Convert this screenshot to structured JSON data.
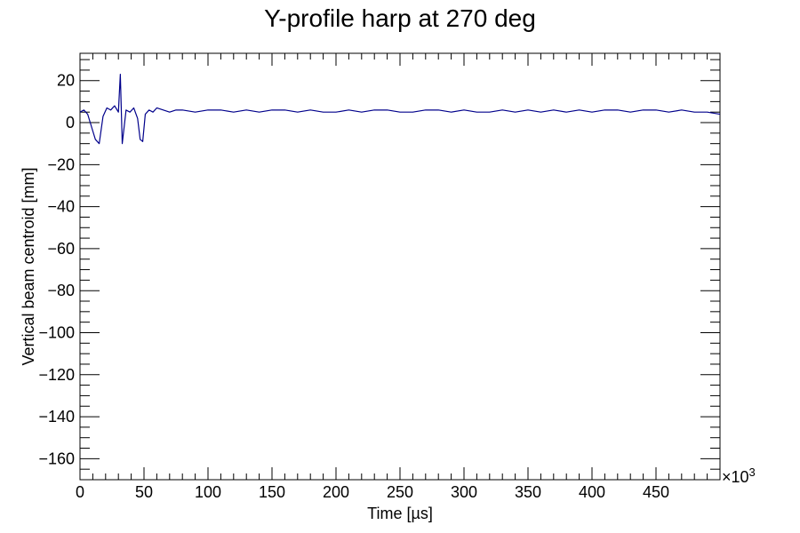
{
  "chart_data": {
    "type": "line",
    "title": "Y-profile harp at 270 deg",
    "xlabel": "Time [µs]",
    "ylabel": "Vertical beam centroid [mm]",
    "x_multiplier": "×10",
    "x_multiplier_exp": "3",
    "xlim": [
      0,
      500
    ],
    "ylim": [
      -170,
      33
    ],
    "x_ticks": [
      {
        "value": 0,
        "label": "0"
      },
      {
        "value": 50,
        "label": "50"
      },
      {
        "value": 100,
        "label": "100"
      },
      {
        "value": 150,
        "label": "150"
      },
      {
        "value": 200,
        "label": "200"
      },
      {
        "value": 250,
        "label": "250"
      },
      {
        "value": 300,
        "label": "300"
      },
      {
        "value": 350,
        "label": "350"
      },
      {
        "value": 400,
        "label": "400"
      },
      {
        "value": 450,
        "label": "450"
      }
    ],
    "y_ticks": [
      {
        "value": 20,
        "label": "20"
      },
      {
        "value": 0,
        "label": "0"
      },
      {
        "value": -20,
        "label": "−20"
      },
      {
        "value": -40,
        "label": "−40"
      },
      {
        "value": -60,
        "label": "−60"
      },
      {
        "value": -80,
        "label": "−80"
      },
      {
        "value": -100,
        "label": "−100"
      },
      {
        "value": -120,
        "label": "−120"
      },
      {
        "value": -140,
        "label": "−140"
      },
      {
        "value": -160,
        "label": "−160"
      }
    ],
    "grid": false,
    "line_color": "#00008b",
    "series": [
      {
        "values_x": [
          0,
          3,
          6,
          9,
          12,
          15,
          18,
          21,
          24,
          27,
          30,
          31.5,
          33,
          36,
          39,
          42,
          45,
          47,
          49,
          51,
          54,
          57,
          60,
          65,
          70,
          75,
          80,
          90,
          100,
          110,
          120,
          130,
          140,
          150,
          160,
          170,
          180,
          190,
          200,
          210,
          220,
          230,
          240,
          250,
          260,
          270,
          280,
          290,
          300,
          310,
          320,
          330,
          340,
          350,
          360,
          370,
          380,
          390,
          400,
          410,
          420,
          430,
          440,
          450,
          460,
          470,
          480,
          490,
          500
        ],
        "values_y": [
          5,
          6,
          4,
          -2,
          -8,
          -10,
          3,
          7,
          6,
          8,
          5,
          23,
          -10,
          6,
          5,
          7,
          2,
          -8,
          -9,
          4,
          6,
          5,
          7,
          6,
          5,
          6,
          6,
          5,
          6,
          6,
          5,
          6,
          5,
          6,
          6,
          5,
          6,
          5,
          5,
          6,
          5,
          6,
          6,
          5,
          5,
          6,
          6,
          5,
          6,
          5,
          5,
          6,
          5,
          6,
          5,
          6,
          5,
          6,
          5,
          6,
          6,
          5,
          6,
          6,
          5,
          6,
          5,
          5,
          4
        ]
      }
    ]
  }
}
